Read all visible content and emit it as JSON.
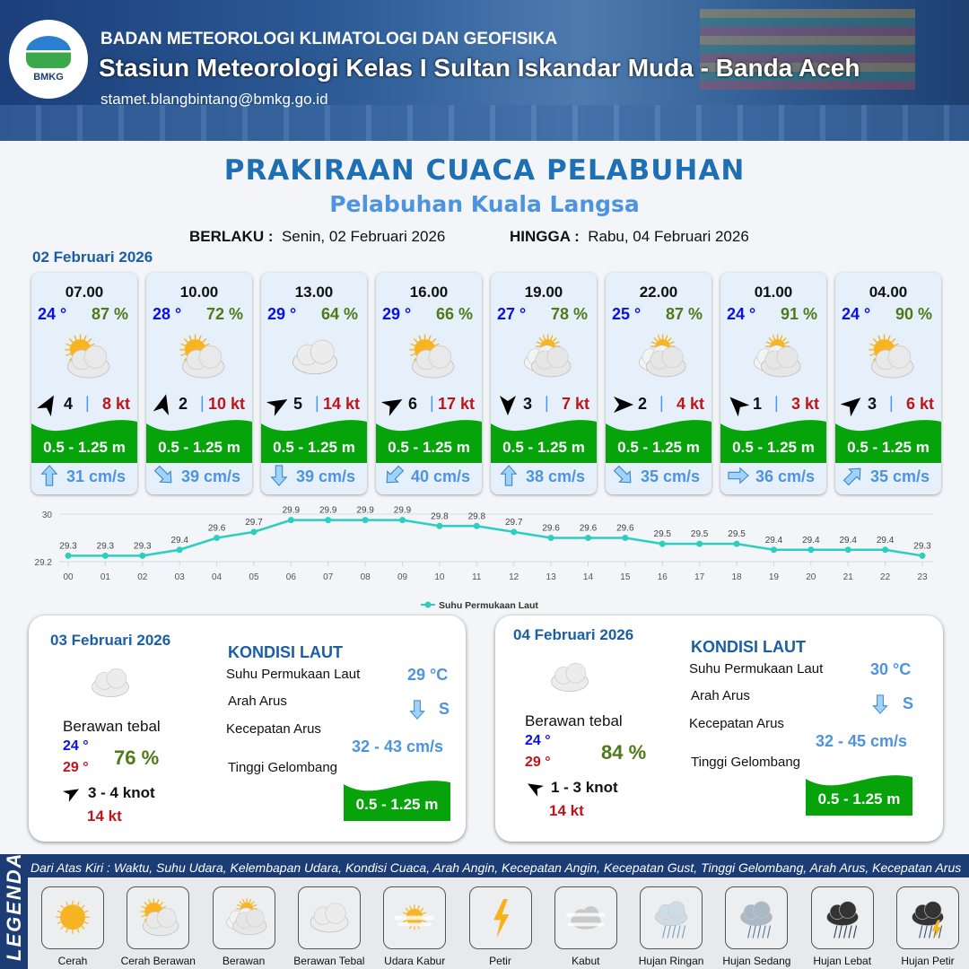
{
  "header": {
    "agency": "BADAN METEOROLOGI KLIMATOLOGI DAN GEOFISIKA",
    "station": "Stasiun Meteorologi Kelas I Sultan Iskandar Muda - Banda Aceh",
    "email": "stamet.blangbintang@bmkg.go.id",
    "logo_text": "BMKG"
  },
  "title": "PRAKIRAAN CUACA PELABUHAN",
  "port": "Pelabuhan Kuala Langsa",
  "validity": {
    "from_label": "BERLAKU :",
    "from": "Senin, 02 Februari 2026",
    "to_label": "HINGGA :",
    "to": "Rabu, 04 Februari 2026"
  },
  "day1": {
    "date": "02 Februari 2026",
    "cards": [
      {
        "time": "07.00",
        "temp": "24 °",
        "hum": "87 %",
        "icon": "cerah-berawan",
        "wind_dir_deg": 30,
        "wind": "4",
        "gust": "8 kt",
        "wave": "0.5 - 1.25 m",
        "cur_dir_deg": 0,
        "cur": "31 cm/s"
      },
      {
        "time": "10.00",
        "temp": "28 °",
        "hum": "72 %",
        "icon": "cerah-berawan",
        "wind_dir_deg": 15,
        "wind": "2",
        "gust": "10 kt",
        "wave": "0.5 - 1.25 m",
        "cur_dir_deg": 135,
        "cur": "39 cm/s"
      },
      {
        "time": "13.00",
        "temp": "29 °",
        "hum": "64 %",
        "icon": "berawan-tebal",
        "wind_dir_deg": 60,
        "wind": "5",
        "gust": "14 kt",
        "wave": "0.5 - 1.25 m",
        "cur_dir_deg": 180,
        "cur": "39 cm/s"
      },
      {
        "time": "16.00",
        "temp": "29 °",
        "hum": "66 %",
        "icon": "cerah-berawan",
        "wind_dir_deg": 60,
        "wind": "6",
        "gust": "17 kt",
        "wave": "0.5 - 1.25 m",
        "cur_dir_deg": 225,
        "cur": "40 cm/s"
      },
      {
        "time": "19.00",
        "temp": "27 °",
        "hum": "78 %",
        "icon": "berawan",
        "wind_dir_deg": 180,
        "wind": "3",
        "gust": "7 kt",
        "wave": "0.5 - 1.25 m",
        "cur_dir_deg": 0,
        "cur": "38 cm/s"
      },
      {
        "time": "22.00",
        "temp": "25 °",
        "hum": "87 %",
        "icon": "berawan",
        "wind_dir_deg": 90,
        "wind": "2",
        "gust": "4 kt",
        "wave": "0.5 - 1.25 m",
        "cur_dir_deg": 135,
        "cur": "35 cm/s"
      },
      {
        "time": "01.00",
        "temp": "24 °",
        "hum": "91 %",
        "icon": "berawan",
        "wind_dir_deg": -45,
        "wind": "1",
        "gust": "3 kt",
        "wave": "0.5 - 1.25 m",
        "cur_dir_deg": 90,
        "cur": "36 cm/s"
      },
      {
        "time": "04.00",
        "temp": "24 °",
        "hum": "90 %",
        "icon": "cerah-berawan",
        "wind_dir_deg": 50,
        "wind": "3",
        "gust": "6 kt",
        "wave": "0.5 - 1.25 m",
        "cur_dir_deg": 45,
        "cur": "35 cm/s"
      }
    ]
  },
  "chart_data": {
    "type": "line",
    "categories": [
      "00",
      "01",
      "02",
      "03",
      "04",
      "05",
      "06",
      "07",
      "08",
      "09",
      "10",
      "11",
      "12",
      "13",
      "14",
      "15",
      "16",
      "17",
      "18",
      "19",
      "20",
      "21",
      "22",
      "23"
    ],
    "series": [
      {
        "name": "Suhu Permukaan Laut",
        "values": [
          29.3,
          29.3,
          29.3,
          29.4,
          29.6,
          29.7,
          29.9,
          29.9,
          29.9,
          29.9,
          29.8,
          29.8,
          29.7,
          29.6,
          29.6,
          29.6,
          29.5,
          29.5,
          29.5,
          29.4,
          29.4,
          29.4,
          29.4,
          29.3
        ],
        "color": "#2ccfbf"
      }
    ],
    "yticks": [
      "30",
      "29.2"
    ],
    "ylim": [
      29.2,
      30
    ],
    "grid": true,
    "legend": "bottom"
  },
  "panels": [
    {
      "date": "03 Februari 2026",
      "icon": "berawan-tebal",
      "condition": "Berawan tebal",
      "tmin": "24 °",
      "tmax": "29 °",
      "hum": "76 %",
      "wind": "3  - 4 knot",
      "gust": "14 kt",
      "sea_title": "KONDISI LAUT",
      "sst_label": "Suhu Permukaan Laut",
      "sst": "29 °C",
      "dir_label": "Arah Arus",
      "dir": "S",
      "speed_label": "Kecepatan Arus",
      "speed": "32  - 43 cm/s",
      "wave_label": "Tinggi Gelombang",
      "wave": "0.5 - 1.25 m"
    },
    {
      "date": "04 Februari 2026",
      "icon": "berawan-tebal",
      "condition": "Berawan tebal",
      "tmin": "24 °",
      "tmax": "29 °",
      "hum": "84 %",
      "wind": "1  - 3 knot",
      "gust": "14 kt",
      "sea_title": "KONDISI LAUT",
      "sst_label": "Suhu Permukaan Laut",
      "sst": "30 °C",
      "dir_label": "Arah Arus",
      "dir": "S",
      "speed_label": "Kecepatan Arus",
      "speed": "32  - 45 cm/s",
      "wave_label": "Tinggi Gelombang",
      "wave": "0.5 - 1.25 m"
    }
  ],
  "legend": {
    "title": "LEGENDA",
    "description": "Dari Atas Kiri : Waktu, Suhu Udara, Kelembapan Udara, Kondisi Cuaca, Arah Angin, Kecepatan Angin, Kecepatan Gust, Tinggi Gelombang, Arah Arus, Kecepatan Arus",
    "items": [
      {
        "label": "Cerah",
        "icon": "cerah"
      },
      {
        "label": "Cerah Berawan",
        "icon": "cerah-berawan"
      },
      {
        "label": "Berawan",
        "icon": "berawan"
      },
      {
        "label": "Berawan Tebal",
        "icon": "berawan-tebal"
      },
      {
        "label": "Udara Kabur",
        "icon": "udara-kabur"
      },
      {
        "label": "Petir",
        "icon": "petir"
      },
      {
        "label": "Kabut",
        "icon": "kabut"
      },
      {
        "label": "Hujan Ringan",
        "icon": "hujan-ringan"
      },
      {
        "label": "Hujan Sedang",
        "icon": "hujan-sedang"
      },
      {
        "label": "Hujan Lebat",
        "icon": "hujan-lebat"
      },
      {
        "label": "Hujan Petir",
        "icon": "hujan-petir"
      }
    ]
  },
  "colors": {
    "temp": "#0a10e8",
    "humidity": "#4f7a19",
    "gust": "#c0141a",
    "wave": "#06a30a",
    "current": "#4d93e0",
    "title": "#1f6fb5"
  }
}
